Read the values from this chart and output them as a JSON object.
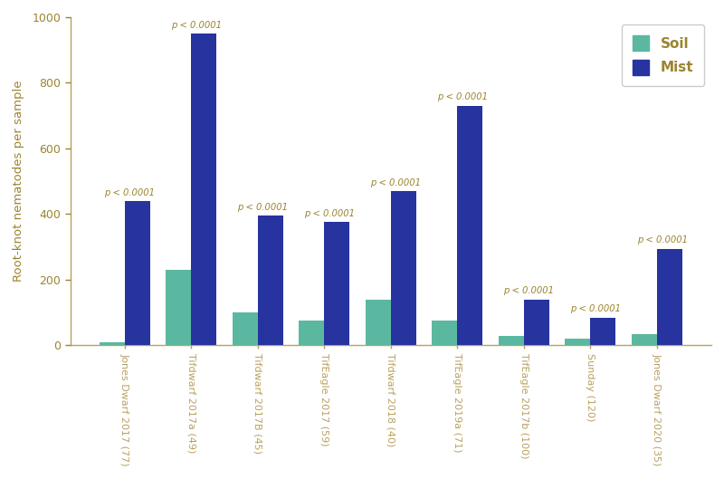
{
  "categories": [
    "Jones Dwarf 2017 (77)",
    "Tifdwarf 2017a (49)",
    "Tifdwarf 2017B (45)",
    "TifEagle 2017 (59)",
    "Tifdwarf 2018 (40)",
    "TifEagle 2019a (71)",
    "TifEagle 2017b (100)",
    "Sunday (120)",
    "Jones Dwarf 2020 (35)"
  ],
  "soil_values": [
    10,
    230,
    100,
    75,
    140,
    75,
    30,
    20,
    35
  ],
  "mist_values": [
    440,
    950,
    395,
    375,
    470,
    730,
    140,
    85,
    295
  ],
  "soil_color": "#5bb8a0",
  "mist_color": "#27339e",
  "p_value_text": "p < 0.0001",
  "p_value_color": "#9b8430",
  "ylabel": "Root-knot nematodes per sample",
  "ylim": [
    0,
    1000
  ],
  "yticks": [
    0,
    200,
    400,
    600,
    800,
    1000
  ],
  "bar_width": 0.38,
  "legend_labels": [
    "Soil",
    "Mist"
  ],
  "legend_text_color": "#9b8430",
  "axis_label_color": "#9b8430",
  "tick_label_color": "#9b8430",
  "spine_color": "#b8a060"
}
